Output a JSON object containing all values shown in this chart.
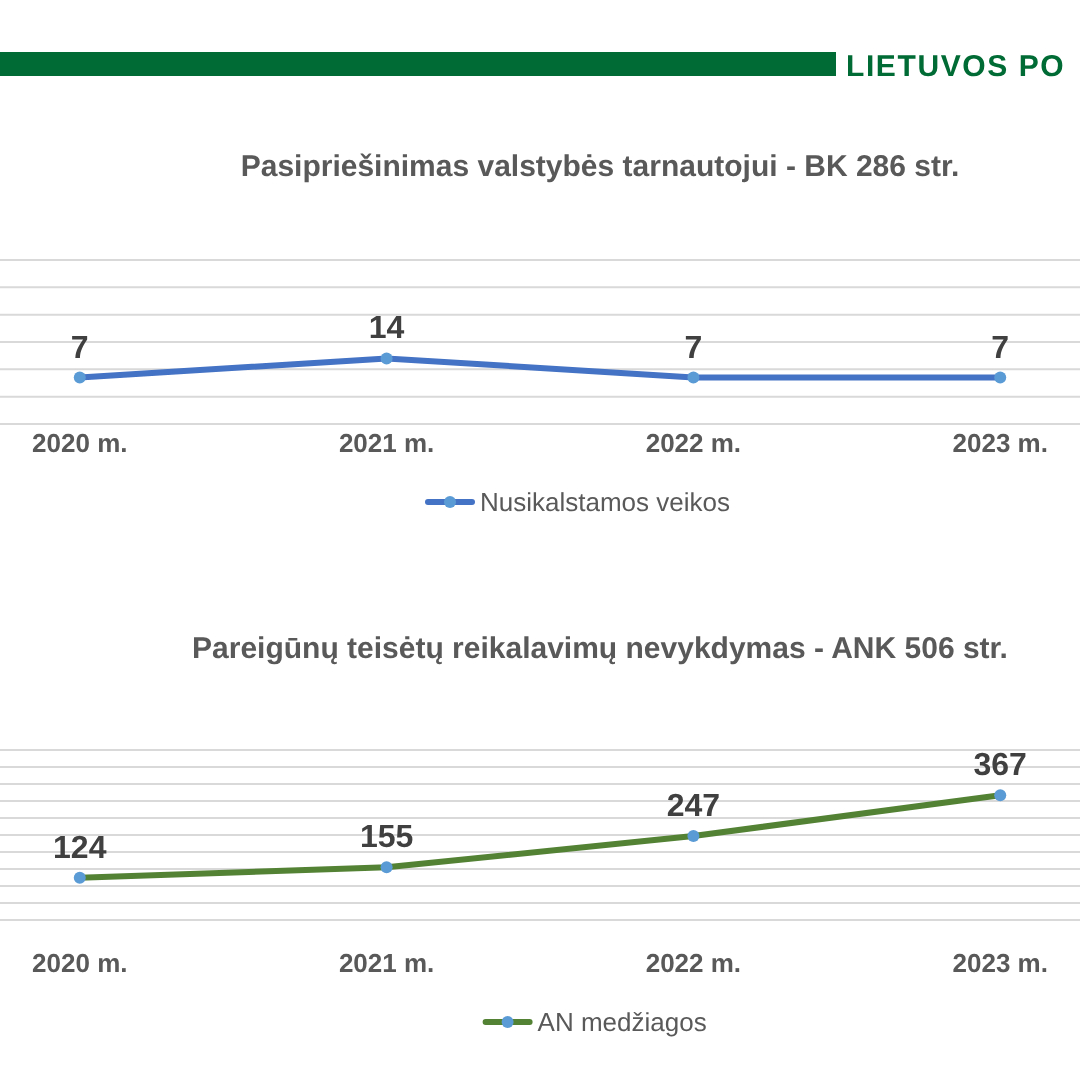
{
  "chart_data": [
    {
      "type": "line",
      "title": "Pasipriešinimas valstybės tarnautojui - BK 286 str.",
      "annotations": [
        "LIETUVOS PO"
      ],
      "categories": [
        "2020 m.",
        "2021 m.",
        "2022 m.",
        "2023 m."
      ],
      "series": [
        {
          "name": "Nusikalstamos veikos",
          "color": "#4472c4",
          "values": [
            7,
            14,
            7,
            7
          ]
        }
      ],
      "ylim": [
        -10,
        50
      ],
      "yticks": [
        {
          "value": -10,
          "label": null
        },
        {
          "value": 0,
          "label": null
        },
        {
          "value": 10,
          "label": null
        },
        {
          "value": 20,
          "label": null
        },
        {
          "value": 30,
          "label": null
        },
        {
          "value": 40,
          "label": null
        },
        {
          "value": 50,
          "label": null
        }
      ],
      "tick_labels": "x",
      "grid": "y",
      "legend": "bottom",
      "marker": "circle",
      "data_labels": true
    },
    {
      "type": "line",
      "title": "Pareigūnų teisėtų reikalavimų nevykdymas - ANK 506 str.",
      "categories": [
        "2020 m.",
        "2021 m.",
        "2022 m.",
        "2023 m."
      ],
      "series": [
        {
          "name": "AN medžiagos",
          "color": "#548235",
          "values": [
            124,
            155,
            247,
            367
          ]
        }
      ],
      "ylim": [
        0,
        500
      ],
      "yticks": [
        {
          "value": 0,
          "label": null
        },
        {
          "value": 50,
          "label": null
        },
        {
          "value": 100,
          "label": null
        },
        {
          "value": 150,
          "label": null
        },
        {
          "value": 200,
          "label": null
        },
        {
          "value": 250,
          "label": null
        },
        {
          "value": 300,
          "label": null
        },
        {
          "value": 350,
          "label": null
        },
        {
          "value": 400,
          "label": null
        },
        {
          "value": 450,
          "label": null
        },
        {
          "value": 500,
          "label": null
        }
      ],
      "tick_labels": "x",
      "grid": "y",
      "legend": "bottom",
      "marker": "circle",
      "data_labels": true
    }
  ]
}
